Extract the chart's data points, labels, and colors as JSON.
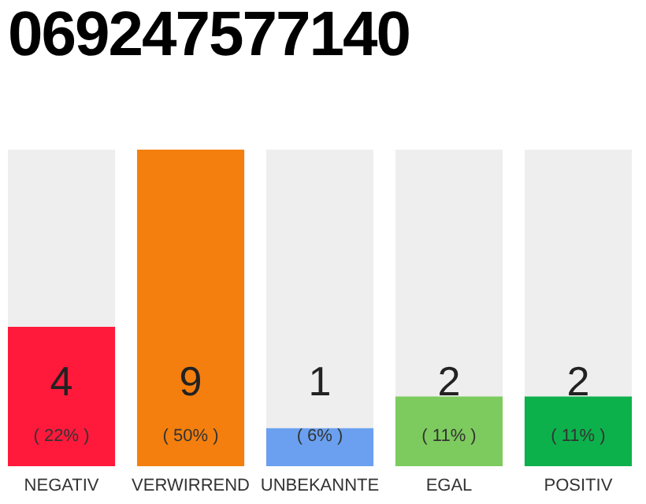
{
  "chart_data": {
    "type": "bar",
    "title": "069247577140",
    "categories": [
      "NEGATIV",
      "VERWIRREND",
      "UNBEKANNTE",
      "EGAL",
      "POSITIV"
    ],
    "values": [
      22,
      50,
      6,
      11,
      11
    ],
    "colors": [
      "#ff1a3c",
      "#f47f0e",
      "#6aa0ef",
      "#7dcb5e",
      "#0db14b"
    ],
    "value_labels": [
      "( 22% )",
      "( 50% )",
      "( 6% )",
      "( 11% )",
      "( 11% )"
    ],
    "annotations": [
      "4",
      "9",
      "1",
      "2",
      "2"
    ],
    "grid": false
  }
}
